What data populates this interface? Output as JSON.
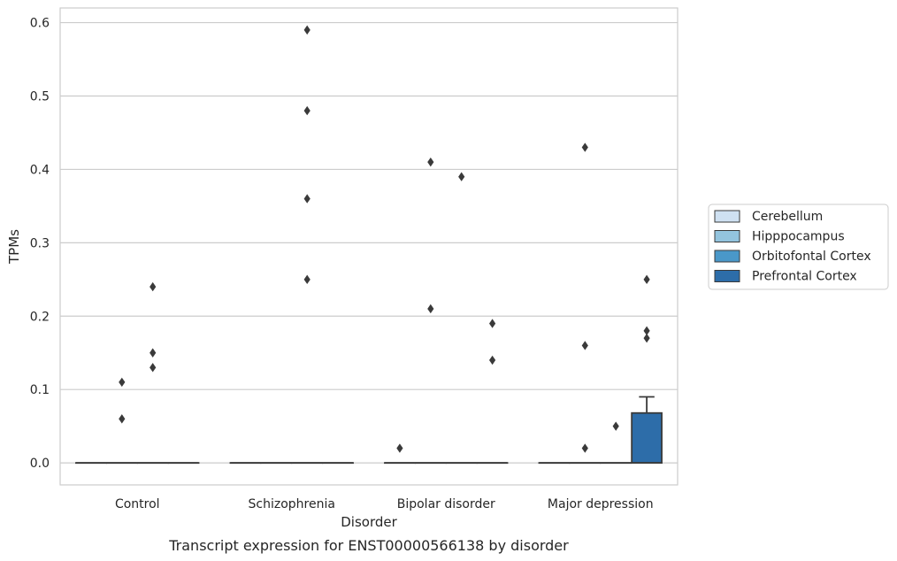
{
  "chart_data": {
    "type": "box",
    "title": "",
    "caption": "Transcript expression for ENST00000566138 by disorder",
    "xlabel": "Disorder",
    "ylabel": "TPMs",
    "ylim": [
      -0.03,
      0.62
    ],
    "yticks": [
      "0.0",
      "0.1",
      "0.2",
      "0.3",
      "0.4",
      "0.5",
      "0.6"
    ],
    "ytick_values": [
      0.0,
      0.1,
      0.2,
      0.3,
      0.4,
      0.5,
      0.6
    ],
    "grid": "y",
    "legend_position": "right",
    "categories": [
      "Control",
      "Schizophrenia",
      "Bipolar disorder",
      "Major depression"
    ],
    "series": [
      {
        "name": "Cerebellum",
        "color": "#cfe1f2",
        "boxes": [
          {
            "category": "Control",
            "q1": 0,
            "median": 0,
            "q3": 0,
            "whisker_high": 0,
            "outliers": []
          },
          {
            "category": "Schizophrenia",
            "q1": 0,
            "median": 0,
            "q3": 0,
            "whisker_high": 0,
            "outliers": []
          },
          {
            "category": "Bipolar disorder",
            "q1": 0,
            "median": 0,
            "q3": 0,
            "whisker_high": 0,
            "outliers": [
              0.02
            ]
          },
          {
            "category": "Major depression",
            "q1": 0,
            "median": 0,
            "q3": 0,
            "whisker_high": 0,
            "outliers": []
          }
        ]
      },
      {
        "name": "Hipppocampus",
        "color": "#93c4de",
        "boxes": [
          {
            "category": "Control",
            "q1": 0,
            "median": 0,
            "q3": 0,
            "whisker_high": 0,
            "outliers": [
              0.06,
              0.11
            ]
          },
          {
            "category": "Schizophrenia",
            "q1": 0,
            "median": 0,
            "q3": 0,
            "whisker_high": 0,
            "outliers": []
          },
          {
            "category": "Bipolar disorder",
            "q1": 0,
            "median": 0,
            "q3": 0,
            "whisker_high": 0,
            "outliers": [
              0.21,
              0.41
            ]
          },
          {
            "category": "Major depression",
            "q1": 0,
            "median": 0,
            "q3": 0,
            "whisker_high": 0,
            "outliers": [
              0.02,
              0.16,
              0.43
            ]
          }
        ]
      },
      {
        "name": "Orbitofontal Cortex",
        "color": "#4a98c9",
        "boxes": [
          {
            "category": "Control",
            "q1": 0,
            "median": 0,
            "q3": 0,
            "whisker_high": 0,
            "outliers": [
              0.13,
              0.15,
              0.24
            ]
          },
          {
            "category": "Schizophrenia",
            "q1": 0,
            "median": 0,
            "q3": 0,
            "whisker_high": 0,
            "outliers": [
              0.25,
              0.36,
              0.48,
              0.59
            ]
          },
          {
            "category": "Bipolar disorder",
            "q1": 0,
            "median": 0,
            "q3": 0,
            "whisker_high": 0,
            "outliers": [
              0.39
            ]
          },
          {
            "category": "Major depression",
            "q1": 0,
            "median": 0,
            "q3": 0,
            "whisker_high": 0,
            "outliers": [
              0.05
            ]
          }
        ]
      },
      {
        "name": "Prefrontal Cortex",
        "color": "#2d6da9",
        "boxes": [
          {
            "category": "Control",
            "q1": 0,
            "median": 0,
            "q3": 0,
            "whisker_high": 0,
            "outliers": []
          },
          {
            "category": "Schizophrenia",
            "q1": 0,
            "median": 0,
            "q3": 0,
            "whisker_high": 0,
            "outliers": []
          },
          {
            "category": "Bipolar disorder",
            "q1": 0,
            "median": 0,
            "q3": 0,
            "whisker_high": 0,
            "outliers": [
              0.14,
              0.19
            ]
          },
          {
            "category": "Major depression",
            "q1": 0,
            "median": 0,
            "q3": 0.068,
            "whisker_high": 0.09,
            "outliers": [
              0.17,
              0.18,
              0.25
            ]
          }
        ]
      }
    ]
  }
}
